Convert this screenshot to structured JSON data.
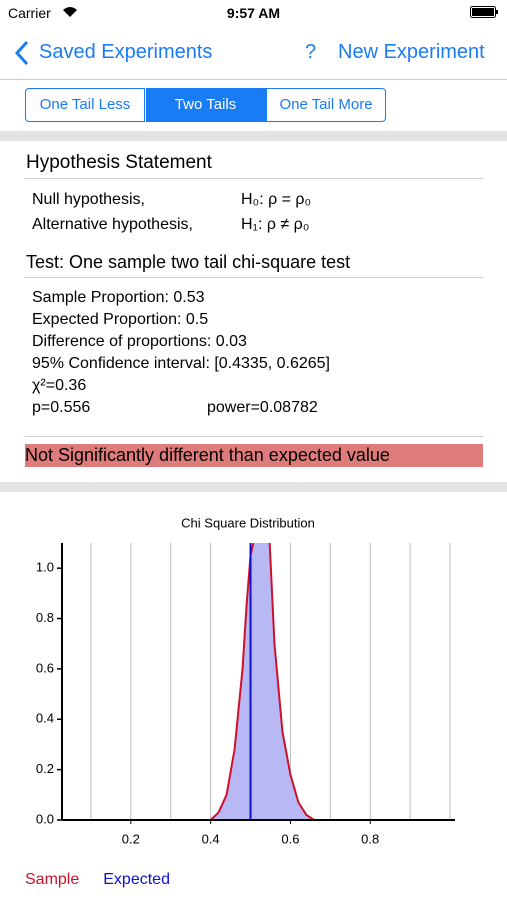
{
  "status_bar": {
    "carrier": "Carrier",
    "time": "9:57 AM"
  },
  "nav": {
    "back": "Saved Experiments",
    "help": "?",
    "action": "New Experiment"
  },
  "segments": {
    "items": [
      "One Tail Less",
      "Two Tails",
      "One Tail More"
    ],
    "selected": 1
  },
  "hypothesis": {
    "title": "Hypothesis Statement",
    "rows": [
      [
        "Null hypothesis,",
        "H₀: ρ = ρ₀"
      ],
      [
        "Alternative hypothesis,",
        "H₁: ρ ≠ ρ₀"
      ]
    ]
  },
  "test": {
    "title": "Test: One sample two tail chi-square test",
    "lines": [
      "Sample Proportion: 0.53",
      "Expected Proportion: 0.5",
      "Difference of proportions: 0.03",
      "95% Confidence interval: [0.4335, 0.6265]",
      "χ²=0.36"
    ],
    "p": "p=0.556",
    "power": "power=0.08782"
  },
  "result": "Not Significantly different than expected value",
  "chart_data": {
    "type": "line",
    "title": "Chi Square Distribution",
    "x": [
      0.4,
      0.42,
      0.44,
      0.46,
      0.48,
      0.49,
      0.5,
      0.507,
      0.53,
      0.548,
      0.56,
      0.58,
      0.6,
      0.62,
      0.64,
      0.66
    ],
    "series": [
      {
        "name": "Sample",
        "color": "#d0102a",
        "fill": "#b8b8f4",
        "values": [
          0.0,
          0.03,
          0.1,
          0.28,
          0.6,
          0.85,
          1.05,
          1.1,
          null,
          1.1,
          0.7,
          0.35,
          0.18,
          0.07,
          0.02,
          0.0
        ]
      },
      {
        "name": "Expected",
        "color": "#1010d0",
        "x": 0.5
      }
    ],
    "xlim": [
      0.0275,
      1.0125
    ],
    "ylim": [
      0,
      1.1
    ],
    "xticks": [
      0.2,
      0.4,
      0.6,
      0.8
    ],
    "xgrid": [
      0.1,
      0.2,
      0.3,
      0.4,
      0.5,
      0.6,
      0.7,
      0.8,
      0.9,
      1.0
    ],
    "yticks": [
      {
        "value": 0,
        "label": "0.0"
      },
      0.2,
      0.4,
      0.6,
      0.8,
      {
        "value": 1,
        "label": "1.0"
      }
    ]
  }
}
